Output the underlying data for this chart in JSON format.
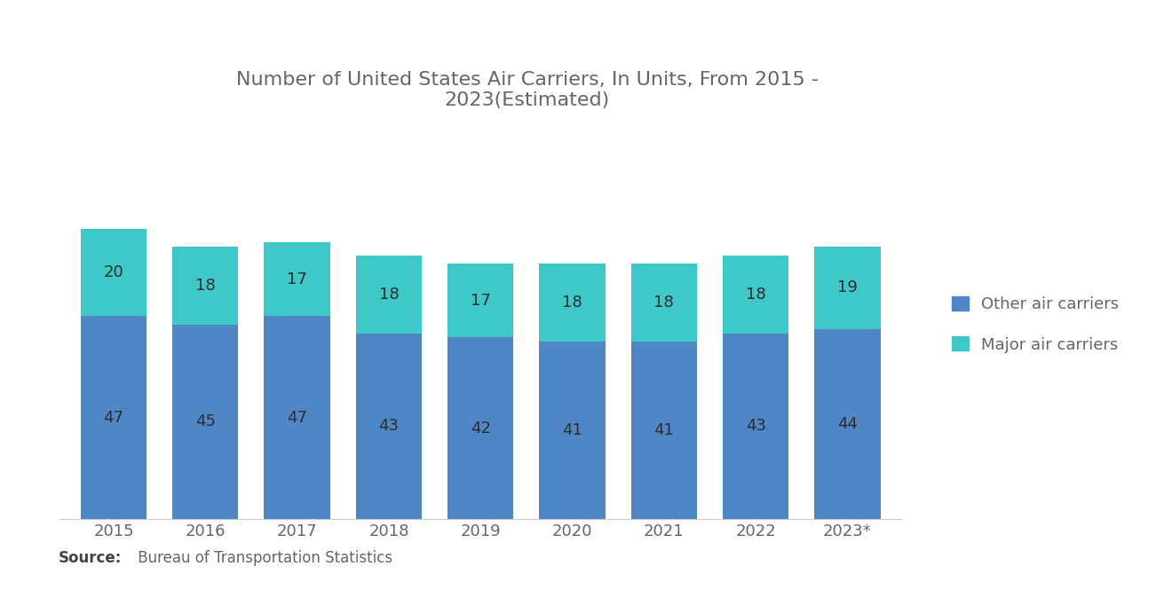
{
  "title": "Number of United States Air Carriers, In Units, From 2015 -\n2023(Estimated)",
  "years": [
    "2015",
    "2016",
    "2017",
    "2018",
    "2019",
    "2020",
    "2021",
    "2022",
    "2023*"
  ],
  "other_carriers": [
    47,
    45,
    47,
    43,
    42,
    41,
    41,
    43,
    44
  ],
  "major_carriers": [
    20,
    18,
    17,
    18,
    17,
    18,
    18,
    18,
    19
  ],
  "color_other": "#4F86C6",
  "color_major": "#3EC8C8",
  "background_color": "#ffffff",
  "legend_labels": [
    "Other air carriers",
    "Major air carriers"
  ],
  "source_text": "Bureau of Transportation Statistics",
  "bar_width": 0.72,
  "title_fontsize": 16,
  "label_fontsize": 13,
  "tick_fontsize": 13,
  "legend_fontsize": 13,
  "source_fontsize": 12
}
